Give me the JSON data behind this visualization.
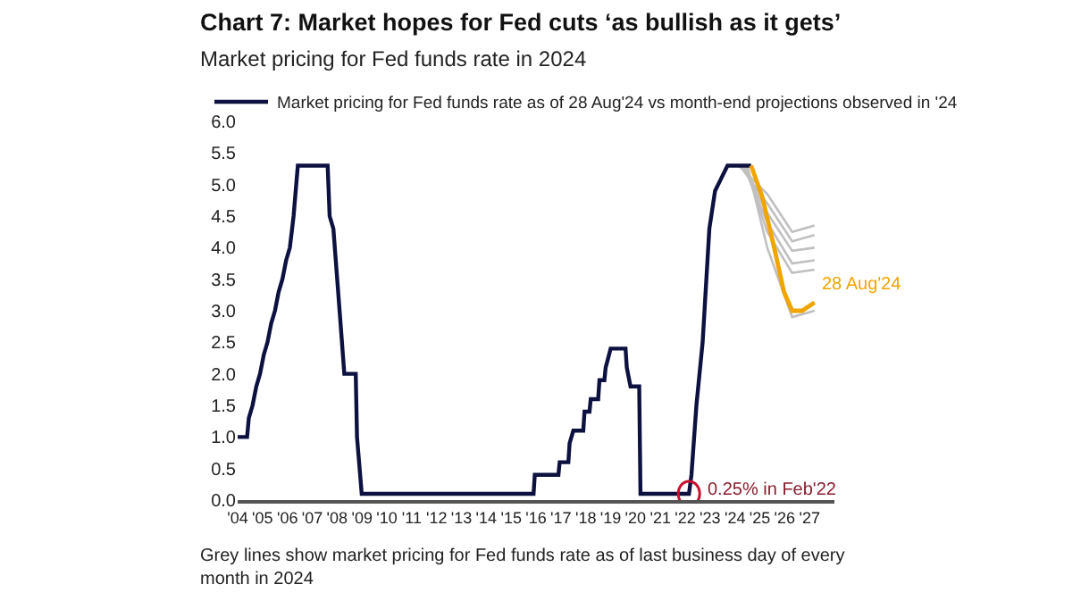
{
  "chart_data": {
    "type": "line",
    "title": "Chart 7: Market hopes for Fed cuts ‘as bullish as it gets’",
    "subtitle": "Market pricing for Fed funds rate in 2024",
    "annotations": [
      {
        "text": "0.25% in Feb'22",
        "x": 2022.15,
        "y": 0.1
      },
      "Grey lines show market pricing for Fed funds rate as of last business day of every month in 2024"
    ],
    "xlim": [
      2004,
      2028
    ],
    "xticks": [
      {
        "value": 2004,
        "label": "'04"
      },
      {
        "value": 2005,
        "label": "'05"
      },
      {
        "value": 2006,
        "label": "'06"
      },
      {
        "value": 2007,
        "label": "'07"
      },
      {
        "value": 2008,
        "label": "'08"
      },
      {
        "value": 2009,
        "label": "'09"
      },
      {
        "value": 2010,
        "label": "'10"
      },
      {
        "value": 2011,
        "label": "'11"
      },
      {
        "value": 2012,
        "label": "'12"
      },
      {
        "value": 2013,
        "label": "'13"
      },
      {
        "value": 2014,
        "label": "'14"
      },
      {
        "value": 2015,
        "label": "'15"
      },
      {
        "value": 2016,
        "label": "'16"
      },
      {
        "value": 2017,
        "label": "'17"
      },
      {
        "value": 2018,
        "label": "'18"
      },
      {
        "value": 2019,
        "label": "'19"
      },
      {
        "value": 2020,
        "label": "'20"
      },
      {
        "value": 2021,
        "label": "'21"
      },
      {
        "value": 2022,
        "label": "'22"
      },
      {
        "value": 2023,
        "label": "'23"
      },
      {
        "value": 2024,
        "label": "'24"
      },
      {
        "value": 2025,
        "label": "'25"
      },
      {
        "value": 2026,
        "label": "'26"
      },
      {
        "value": 2027,
        "label": "'27"
      }
    ],
    "ylim": [
      0,
      6
    ],
    "yticks": [
      {
        "value": 0,
        "label": "0.0"
      },
      {
        "value": 0.5,
        "label": "0.5"
      },
      {
        "value": 1,
        "label": "1.0"
      },
      {
        "value": 1.5,
        "label": "1.5"
      },
      {
        "value": 2,
        "label": "2.0"
      },
      {
        "value": 2.5,
        "label": "2.5"
      },
      {
        "value": 3,
        "label": "3.0"
      },
      {
        "value": 3.5,
        "label": "3.5"
      },
      {
        "value": 4,
        "label": "4.0"
      },
      {
        "value": 4.5,
        "label": "4.5"
      },
      {
        "value": 5,
        "label": "5.0"
      },
      {
        "value": 5.5,
        "label": "5.5"
      },
      {
        "value": 6,
        "label": "6.0"
      }
    ],
    "grid": false,
    "legend": "top",
    "marker": "none",
    "line_style": "solid",
    "series": [
      {
        "color": "#c0c0c0",
        "x": [
          2024.15,
          2025.3,
          2026.3,
          2027.2
        ],
        "values": [
          5.3,
          4.85,
          4.25,
          4.35
        ]
      },
      {
        "color": "#c0c0c0",
        "x": [
          2024.2,
          2025.3,
          2026.3,
          2027.2
        ],
        "values": [
          5.3,
          4.7,
          4.1,
          4.2
        ]
      },
      {
        "color": "#c0c0c0",
        "x": [
          2024.3,
          2025.3,
          2026.3,
          2027.2
        ],
        "values": [
          5.3,
          4.55,
          3.95,
          4.0
        ]
      },
      {
        "color": "#c0c0c0",
        "x": [
          2024.35,
          2025.3,
          2026.3,
          2027.2
        ],
        "values": [
          5.3,
          4.4,
          3.75,
          3.8
        ]
      },
      {
        "color": "#c0c0c0",
        "x": [
          2024.4,
          2025.3,
          2026.3,
          2027.2
        ],
        "values": [
          5.3,
          4.25,
          3.6,
          3.65
        ]
      },
      {
        "color": "#c0c0c0",
        "x": [
          2024.5,
          2025.3,
          2026.3,
          2027.2
        ],
        "values": [
          5.3,
          4.0,
          2.9,
          3.0
        ]
      },
      {
        "name": "Market pricing for Fed funds rate as of 28 Aug'24 vs month-end projections observed in '24",
        "color": "#0d1140",
        "x": [
          2004,
          2004.38,
          2004.45,
          2004.6,
          2004.75,
          2004.9,
          2005.05,
          2005.2,
          2005.35,
          2005.5,
          2005.65,
          2005.8,
          2005.95,
          2006.1,
          2006.25,
          2006.42,
          2007.62,
          2007.7,
          2007.85,
          2008.1,
          2008.29,
          2008.75,
          2008.8,
          2008.99,
          2015.9,
          2015.95,
          2016.9,
          2016.95,
          2017.1,
          2017.3,
          2017.35,
          2017.5,
          2017.9,
          2017.95,
          2018.15,
          2018.2,
          2018.5,
          2018.55,
          2018.75,
          2018.8,
          2019.0,
          2019.6,
          2019.65,
          2019.8,
          2020.15,
          2020.2,
          2022.15,
          2022.25,
          2022.45,
          2022.7,
          2022.97,
          2023.2,
          2023.45,
          2023.7,
          2024.65
        ],
        "values": [
          1.0,
          1.0,
          1.3,
          1.5,
          1.8,
          2.0,
          2.3,
          2.5,
          2.8,
          3.0,
          3.3,
          3.5,
          3.8,
          4.0,
          4.5,
          5.3,
          5.3,
          4.5,
          4.3,
          3.0,
          2.0,
          2.0,
          1.0,
          0.1,
          0.1,
          0.4,
          0.4,
          0.6,
          0.6,
          0.6,
          0.9,
          1.1,
          1.1,
          1.4,
          1.4,
          1.6,
          1.6,
          1.9,
          1.9,
          2.1,
          2.4,
          2.4,
          2.1,
          1.8,
          1.8,
          0.1,
          0.1,
          0.4,
          1.5,
          2.5,
          4.3,
          4.9,
          5.1,
          5.3,
          5.3
        ]
      },
      {
        "name": "28 Aug'24",
        "color": "#f0a500",
        "x": [
          2024.65,
          2025.1,
          2025.6,
          2025.97,
          2026.3,
          2026.7,
          2027.2
        ],
        "values": [
          5.3,
          4.8,
          3.96,
          3.3,
          3.0,
          3.0,
          3.13
        ]
      }
    ]
  }
}
